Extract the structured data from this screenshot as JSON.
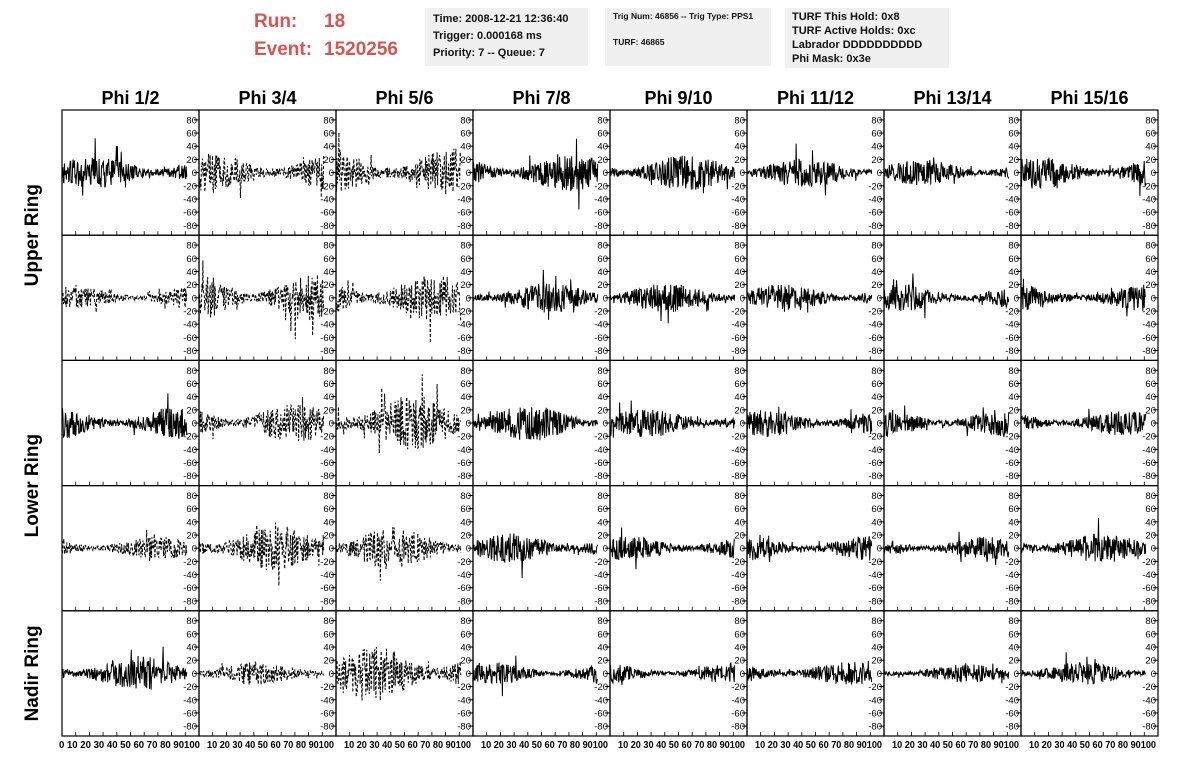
{
  "header": {
    "run_label": "Run:",
    "run_value": "18",
    "event_label": "Event:",
    "event_value": "1520256",
    "time_line": "Time: 2008-12-21 12:36:40",
    "trigger_line": "Trigger: 0.000168 ms",
    "priority_line": "Priority: 7 -- Queue: 7",
    "trig_num_line": "Trig Num: 46856 -- Trig Type: PPS1",
    "turf_line": "TURF: 46865",
    "turf_hold_line": "TURF This Hold: 0x8",
    "turf_active_line": "TURF Active Holds: 0xc",
    "labrador_line": "Labrador DDDDDDDDDD",
    "phi_mask_line": "Phi Mask: 0x3e"
  },
  "chart_data": {
    "type": "line",
    "columns": [
      "Phi 1/2",
      "Phi 3/4",
      "Phi 5/6",
      "Phi 7/8",
      "Phi 9/10",
      "Phi 11/12",
      "Phi 13/14",
      "Phi 15/16"
    ],
    "rings": [
      "Upper Ring",
      "Lower Ring",
      "Nadir Ring"
    ],
    "rows": 5,
    "ylim": [
      -95,
      95
    ],
    "xlim": [
      0,
      100
    ],
    "yticks": [
      -80,
      -60,
      -40,
      -20,
      0,
      20,
      40,
      60,
      80
    ],
    "xticks": [
      0,
      10,
      20,
      30,
      40,
      50,
      60,
      70,
      80,
      90,
      100
    ],
    "xtick_label_strings": [
      "0 10 20 30 40 50 60 70 80 90100",
      "10 20 30 40 50 60 70 80 90100",
      "10 20 30 40 50 60 70 80 90100",
      "10 20 30 40 50 60 70 80 90100",
      "10 20 30 40 50 60 70 80 90100",
      "10 20 30 40 50 60 70 80 90100",
      "10 20 30 40 50 60 70 80 90100",
      "10 20 30 40 50 60 70 80 90100"
    ],
    "samples_per_trace": 260,
    "trace_x_range": [
      0,
      91
    ],
    "dashed_panels": [
      [
        0,
        1
      ],
      [
        0,
        2
      ],
      [
        1,
        0
      ],
      [
        1,
        1
      ],
      [
        1,
        2
      ],
      [
        2,
        1
      ],
      [
        2,
        2
      ],
      [
        3,
        0
      ],
      [
        3,
        1
      ],
      [
        3,
        2
      ],
      [
        4,
        1
      ],
      [
        4,
        2
      ]
    ],
    "amplitude": [
      [
        20,
        24,
        30,
        24,
        22,
        18,
        16,
        20
      ],
      [
        14,
        30,
        28,
        18,
        18,
        17,
        16,
        16
      ],
      [
        20,
        24,
        34,
        22,
        18,
        17,
        17,
        15
      ],
      [
        14,
        28,
        26,
        18,
        15,
        15,
        14,
        18
      ],
      [
        22,
        14,
        34,
        14,
        12,
        14,
        11,
        14
      ]
    ],
    "seeds": [
      [
        11,
        12,
        13,
        14,
        15,
        16,
        17,
        18
      ],
      [
        21,
        22,
        23,
        24,
        25,
        26,
        27,
        28
      ],
      [
        31,
        32,
        33,
        34,
        35,
        36,
        37,
        38
      ],
      [
        41,
        42,
        43,
        44,
        45,
        46,
        47,
        48
      ],
      [
        51,
        52,
        53,
        54,
        55,
        56,
        57,
        58
      ]
    ]
  }
}
